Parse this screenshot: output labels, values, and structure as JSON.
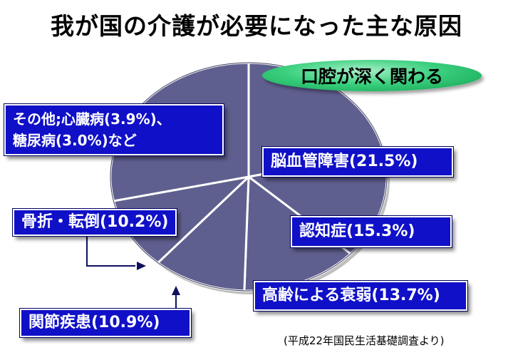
{
  "title": "我が国の介護が必要になった主な原因",
  "highlight": "口腔が深く関わる",
  "labels": {
    "stroke": "脳血管障害(21.5%)",
    "dementia": "認知症(15.3%)",
    "frailty": "高齢による衰弱(13.7%)",
    "joint": "関節疾患(10.9%)",
    "fracture": "骨折・転倒(10.2%)",
    "other_line1": "その他;心臓病(3.9%)、",
    "other_line2": "糖尿病(3.0%)など"
  },
  "source": "(平成22年国民生活基礎調査より)",
  "colors": {
    "pie_fill": "#5f5f8f",
    "label_bg": "#1010c8",
    "oval": "#3ad07e"
  },
  "chart_data": {
    "type": "pie",
    "title": "我が国の介護が必要になった主な原因",
    "slices": [
      {
        "label": "脳血管障害",
        "value": 21.5
      },
      {
        "label": "認知症",
        "value": 15.3
      },
      {
        "label": "高齢による衰弱",
        "value": 13.7
      },
      {
        "label": "関節疾患",
        "value": 10.9
      },
      {
        "label": "骨折・転倒",
        "value": 10.2
      },
      {
        "label": "その他;心臓病(3.9%)、糖尿病(3.0%)など",
        "value": 28.4
      }
    ]
  }
}
